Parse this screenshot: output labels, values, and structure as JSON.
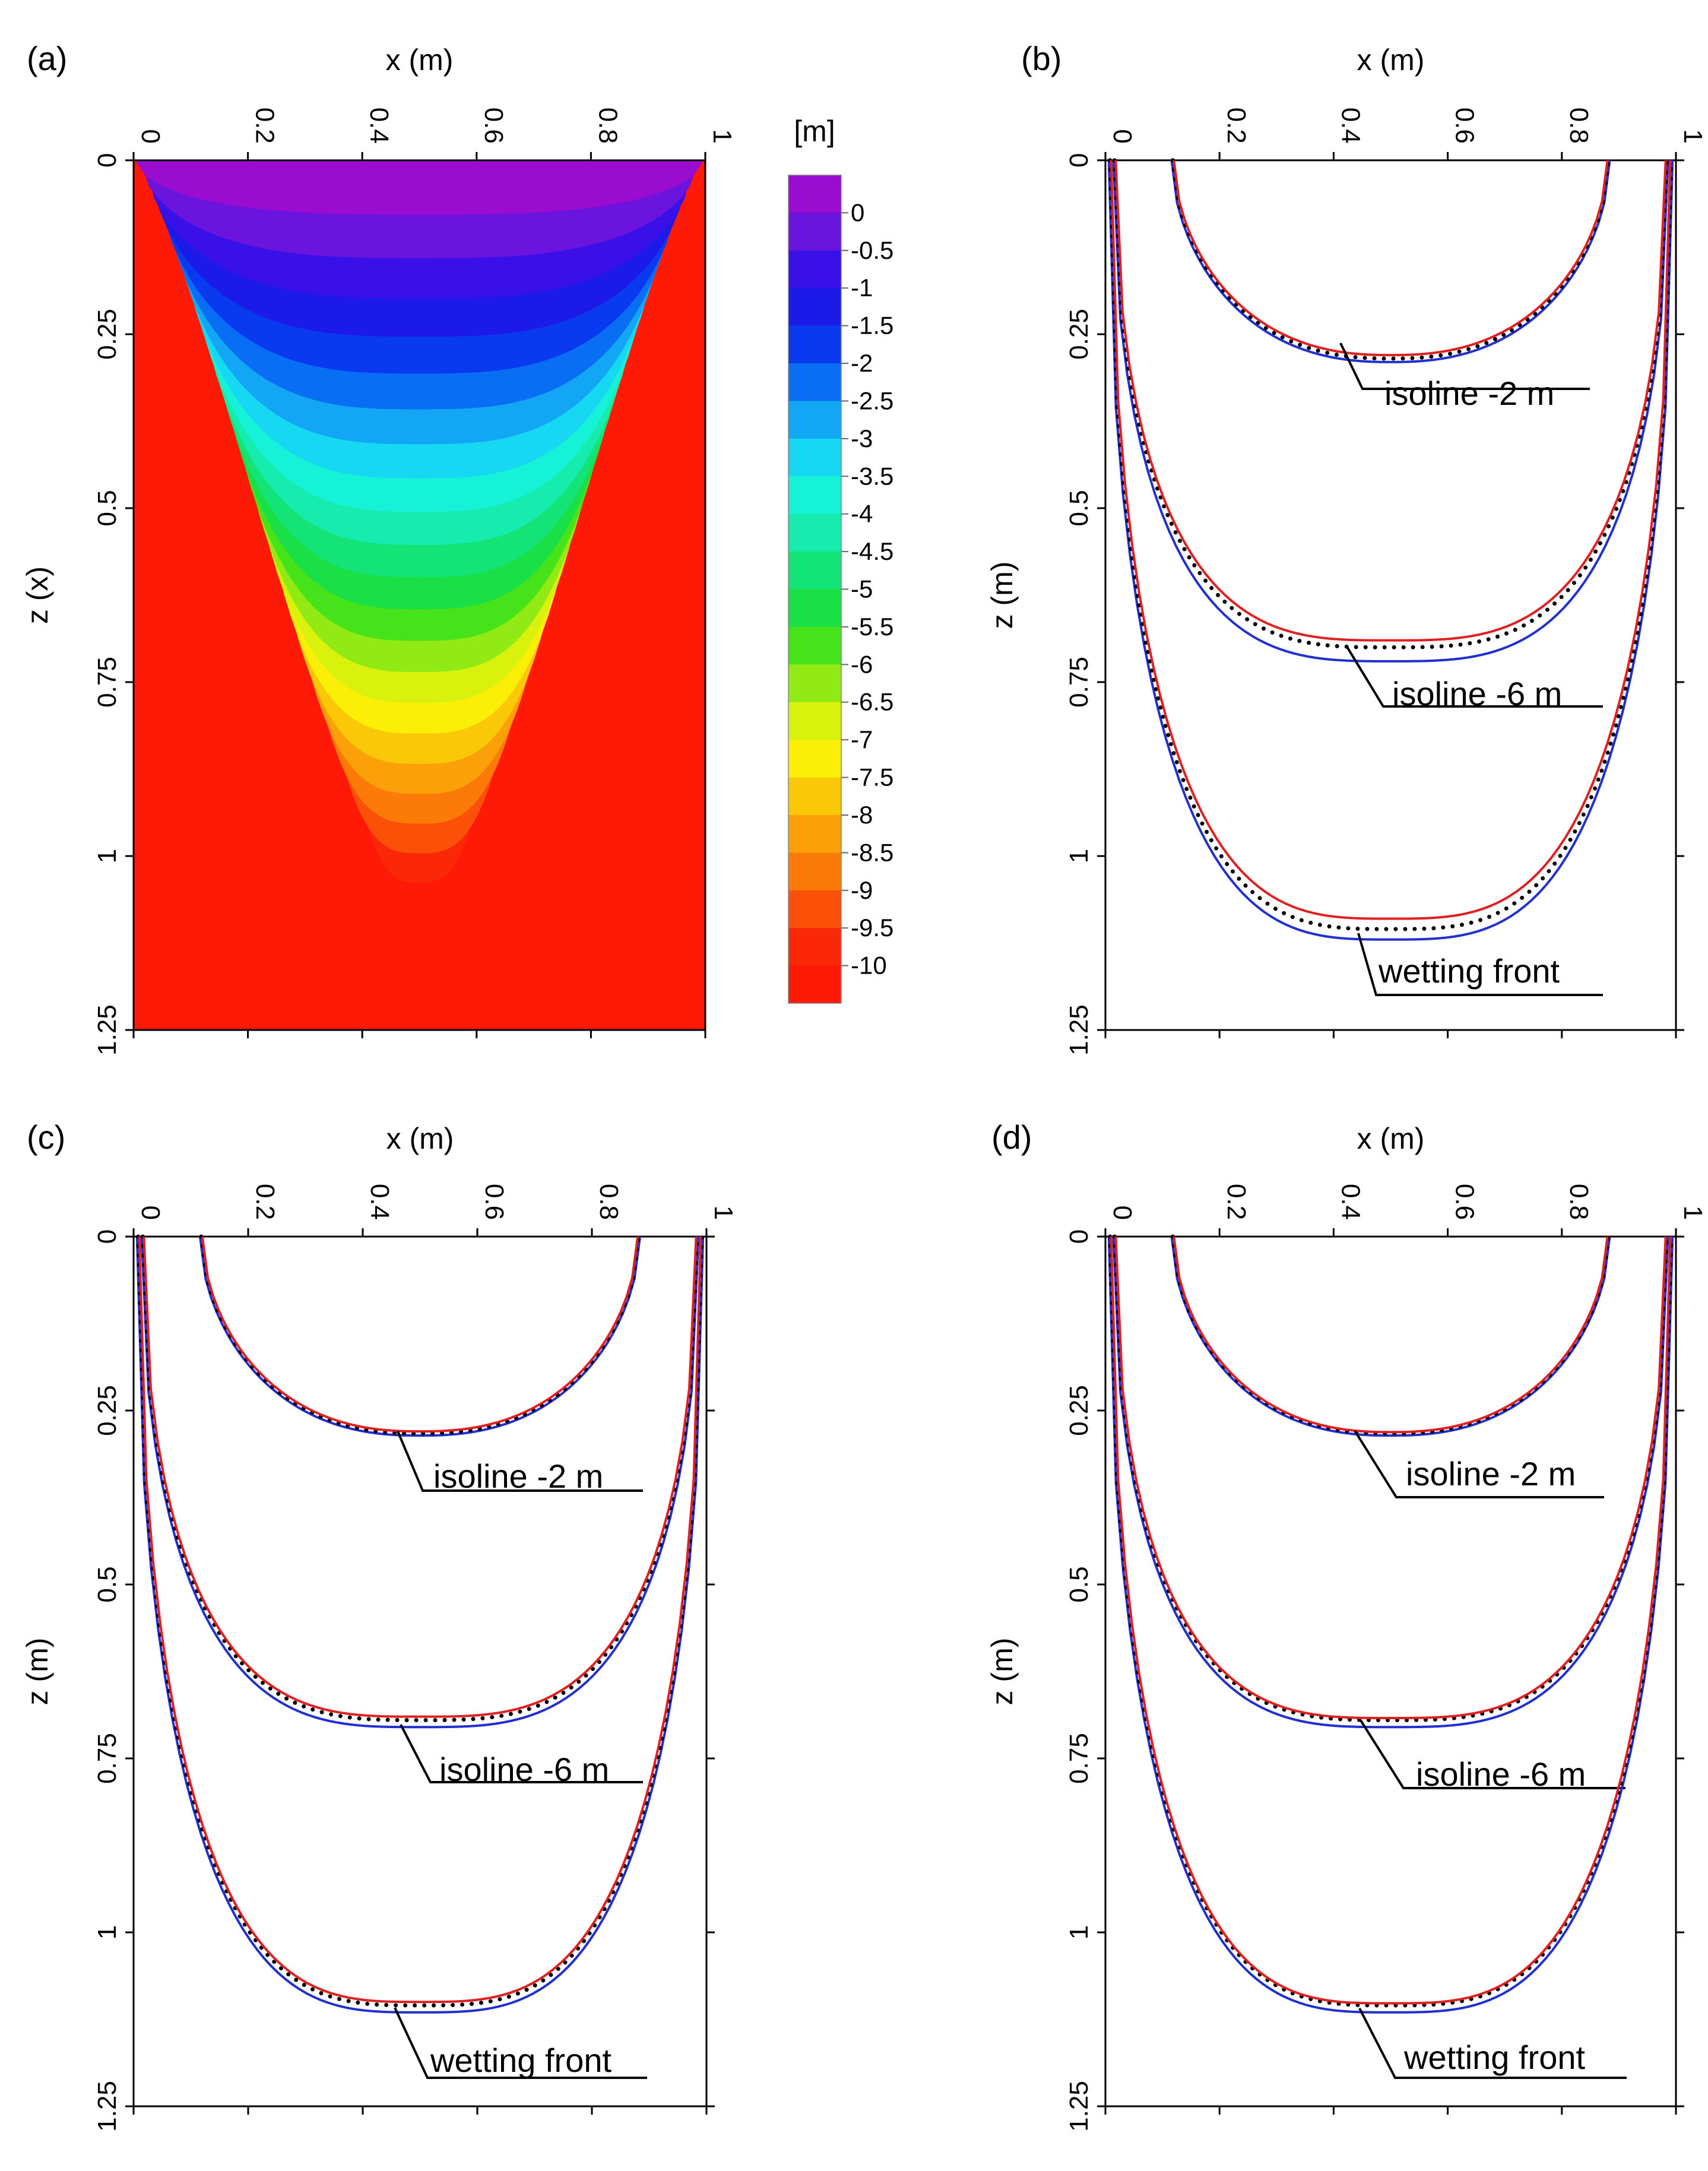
{
  "chart_data": [
    {
      "id": "a",
      "type": "heatmap",
      "panel_label": "(a)",
      "xlabel": "x (m)",
      "ylabel": "z (x)",
      "xlim": [
        0,
        1
      ],
      "ylim": [
        0,
        1.25
      ],
      "x_ticks": [
        "0",
        "0.2",
        "0.4",
        "0.6",
        "0.8",
        "1"
      ],
      "y_ticks": [
        "0",
        "0.25",
        "0.5",
        "0.75",
        "1",
        "1.25"
      ],
      "colorbar": {
        "title": "[m]",
        "levels": [
          "0",
          "-0.5",
          "-1",
          "-1.5",
          "-2",
          "-2.5",
          "-3",
          "-3.5",
          "-4",
          "-4.5",
          "-5",
          "-5.5",
          "-6",
          "-6.5",
          "-7",
          "-7.5",
          "-8",
          "-8.5",
          "-9",
          "-9.5",
          "-10"
        ],
        "colors": [
          "#9a0ccf",
          "#6a14dd",
          "#3a10e8",
          "#1c1ae8",
          "#0a3af0",
          "#0a6ef5",
          "#12a6f5",
          "#16d8f2",
          "#16f2d8",
          "#16ecae",
          "#14e478",
          "#18e046",
          "#46e21a",
          "#92ea14",
          "#d8f20e",
          "#fbef08",
          "#fbc808",
          "#fba008",
          "#fb7a08",
          "#fb5008",
          "#fb2808",
          "#ff1a08"
        ]
      }
    },
    {
      "id": "b",
      "type": "line",
      "panel_label": "(b)",
      "xlabel": "x (m)",
      "ylabel": "z (m)",
      "xlim": [
        0,
        1
      ],
      "ylim": [
        0,
        1.25
      ],
      "x_ticks": [
        "0",
        "0.2",
        "0.4",
        "0.6",
        "0.8",
        "1"
      ],
      "y_ticks": [
        "0",
        "0.25",
        "0.5",
        "0.75",
        "1",
        "1.25"
      ],
      "curves": [
        {
          "name": "isoline -2 m",
          "label": "isoline -2 m",
          "x_edge": 0.12,
          "depth_red": 0.28,
          "depth_dot": 0.285,
          "depth_blue": 0.29
        },
        {
          "name": "isoline -6 m",
          "label": "isoline -6 m",
          "x_edge": 0.018,
          "depth_red": 0.69,
          "depth_dot": 0.7,
          "depth_blue": 0.72
        },
        {
          "name": "wetting front",
          "label": "wetting front",
          "x_edge": 0.01,
          "depth_red": 1.09,
          "depth_dot": 1.105,
          "depth_blue": 1.12
        }
      ]
    },
    {
      "id": "c",
      "type": "line",
      "panel_label": "(c)",
      "xlabel": "x (m)",
      "ylabel": "z (m)",
      "xlim": [
        0,
        1
      ],
      "ylim": [
        0,
        1.25
      ],
      "x_ticks": [
        "0",
        "0.2",
        "0.4",
        "0.6",
        "0.8",
        "1"
      ],
      "y_ticks": [
        "0",
        "0.25",
        "0.5",
        "0.75",
        "1",
        "1.25"
      ],
      "curves": [
        {
          "name": "isoline -2 m",
          "label": "isoline -2 m",
          "x_edge": 0.12,
          "depth_red": 0.28,
          "depth_dot": 0.283,
          "depth_blue": 0.286
        },
        {
          "name": "isoline -6 m",
          "label": "isoline -6 m",
          "x_edge": 0.018,
          "depth_red": 0.69,
          "depth_dot": 0.695,
          "depth_blue": 0.705
        },
        {
          "name": "wetting front",
          "label": "wetting front",
          "x_edge": 0.01,
          "depth_red": 1.1,
          "depth_dot": 1.105,
          "depth_blue": 1.115
        }
      ]
    },
    {
      "id": "d",
      "type": "line",
      "panel_label": "(d)",
      "xlabel": "x (m)",
      "ylabel": "z (m)",
      "xlim": [
        0,
        1
      ],
      "ylim": [
        0,
        1.25
      ],
      "x_ticks": [
        "0",
        "0.2",
        "0.4",
        "0.6",
        "0.8",
        "1"
      ],
      "y_ticks": [
        "0",
        "0.25",
        "0.5",
        "0.75",
        "1",
        "1.25"
      ],
      "curves": [
        {
          "name": "isoline -2 m",
          "label": "isoline -2 m",
          "x_edge": 0.12,
          "depth_red": 0.281,
          "depth_dot": 0.283,
          "depth_blue": 0.286
        },
        {
          "name": "isoline -6 m",
          "label": "isoline -6 m",
          "x_edge": 0.018,
          "depth_red": 0.692,
          "depth_dot": 0.695,
          "depth_blue": 0.705
        },
        {
          "name": "wetting front",
          "label": "wetting front",
          "x_edge": 0.01,
          "depth_red": 1.102,
          "depth_dot": 1.105,
          "depth_blue": 1.115
        }
      ]
    }
  ],
  "series_colors": {
    "red": "#e02020",
    "blue": "#2030d0",
    "dotted": "#000000"
  }
}
